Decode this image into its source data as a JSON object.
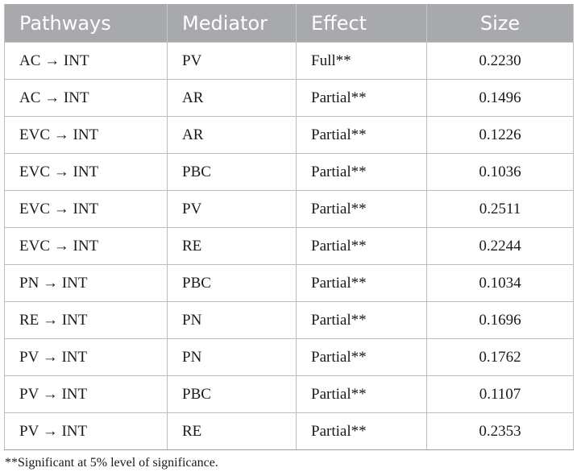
{
  "table": {
    "headers": [
      "Pathways",
      "Mediator",
      "Effect",
      "Size"
    ],
    "rows": [
      {
        "pathway": "AC →  INT",
        "mediator": "PV",
        "effect": "Full**",
        "size": "0.2230"
      },
      {
        "pathway": "AC →  INT",
        "mediator": "AR",
        "effect": "Partial**",
        "size": "0.1496"
      },
      {
        "pathway": "EVC →  INT",
        "mediator": "AR",
        "effect": "Partial**",
        "size": "0.1226"
      },
      {
        "pathway": "EVC →  INT",
        "mediator": "PBC",
        "effect": "Partial**",
        "size": "0.1036"
      },
      {
        "pathway": "EVC →  INT",
        "mediator": "PV",
        "effect": "Partial**",
        "size": "0.2511"
      },
      {
        "pathway": "EVC →  INT",
        "mediator": "RE",
        "effect": "Partial**",
        "size": "0.2244"
      },
      {
        "pathway": "PN →  INT",
        "mediator": "PBC",
        "effect": "Partial**",
        "size": "0.1034"
      },
      {
        "pathway": "RE →  INT",
        "mediator": "PN",
        "effect": "Partial**",
        "size": "0.1696"
      },
      {
        "pathway": "PV →  INT",
        "mediator": "PN",
        "effect": "Partial**",
        "size": "0.1762"
      },
      {
        "pathway": "PV →  INT",
        "mediator": "PBC",
        "effect": "Partial**",
        "size": "0.1107"
      },
      {
        "pathway": "PV →  INT",
        "mediator": "RE",
        "effect": "Partial**",
        "size": "0.2353"
      }
    ]
  },
  "footnote": "**Significant at 5% level of significance.",
  "colors": {
    "header_bg": "#a7a9ac",
    "header_text": "#ffffff",
    "border": "#bcbdc0"
  }
}
